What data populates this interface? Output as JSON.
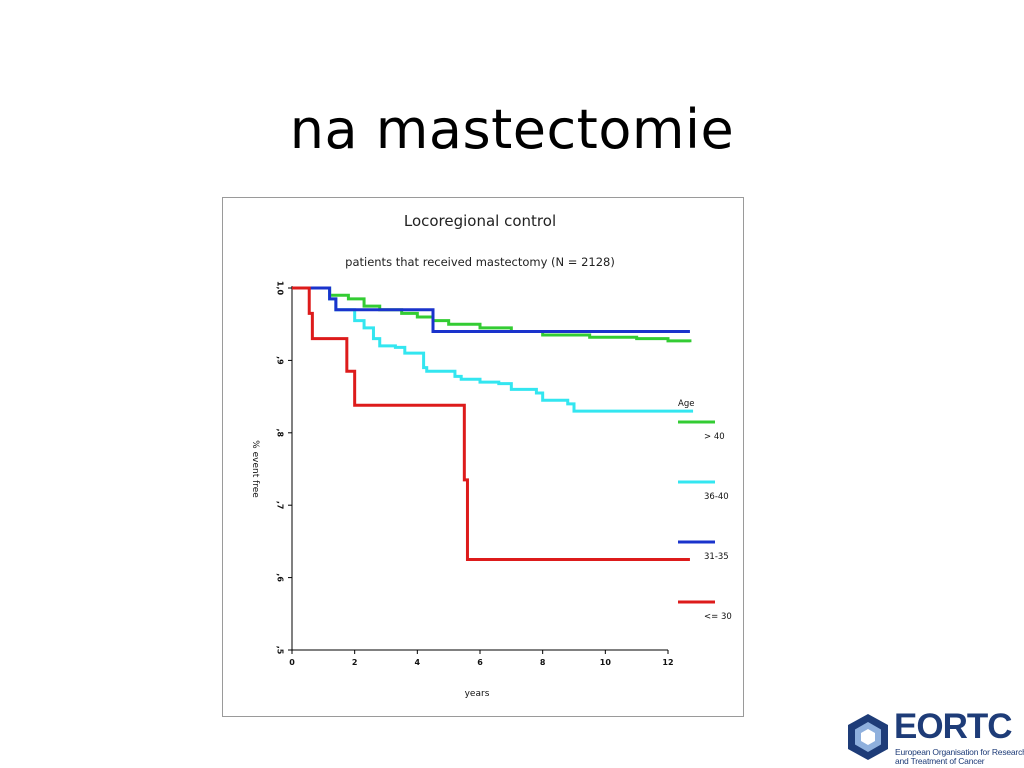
{
  "slide": {
    "title": "na mastectomie"
  },
  "logo": {
    "name": "EORTC",
    "line1": "European Organisation for Research",
    "line2": "and Treatment of Cancer",
    "color": "#1e3c78"
  },
  "chart_data": {
    "type": "line",
    "step": true,
    "title": "Locoregional control",
    "subtitle": "patients that received mastectomy (N = 2128)",
    "xlabel": "years",
    "ylabel": "% event free",
    "xlim": [
      0,
      12
    ],
    "ylim": [
      0.5,
      1.0
    ],
    "xticks": [
      0,
      2,
      4,
      6,
      8,
      10,
      12
    ],
    "yticks": [
      {
        "value": 1.0,
        "label": "1,0"
      },
      {
        "value": 0.9,
        "label": ",9"
      },
      {
        "value": 0.8,
        "label": ",8"
      },
      {
        "value": 0.7,
        "label": ",7"
      },
      {
        "value": 0.6,
        "label": ",6"
      },
      {
        "value": 0.5,
        "label": ",5"
      }
    ],
    "legend_title": "Age",
    "legend_position": "right",
    "grid": false,
    "series": [
      {
        "name": "> 40",
        "color": "#33cc33",
        "points": [
          [
            0,
            1.0
          ],
          [
            1.0,
            1.0
          ],
          [
            1.2,
            0.99
          ],
          [
            1.8,
            0.985
          ],
          [
            2.3,
            0.975
          ],
          [
            2.8,
            0.97
          ],
          [
            3.5,
            0.965
          ],
          [
            4.0,
            0.96
          ],
          [
            4.5,
            0.955
          ],
          [
            5.0,
            0.95
          ],
          [
            6.0,
            0.945
          ],
          [
            7.0,
            0.94
          ],
          [
            8.0,
            0.935
          ],
          [
            9.5,
            0.932
          ],
          [
            11.0,
            0.93
          ],
          [
            12.0,
            0.927
          ],
          [
            12.7,
            0.925
          ]
        ]
      },
      {
        "name": "36-40",
        "color": "#33e6f0",
        "points": [
          [
            0,
            1.0
          ],
          [
            1.0,
            1.0
          ],
          [
            1.2,
            0.985
          ],
          [
            1.4,
            0.97
          ],
          [
            2.0,
            0.955
          ],
          [
            2.3,
            0.945
          ],
          [
            2.6,
            0.93
          ],
          [
            2.8,
            0.92
          ],
          [
            3.3,
            0.918
          ],
          [
            3.6,
            0.91
          ],
          [
            4.2,
            0.89
          ],
          [
            4.3,
            0.885
          ],
          [
            5.2,
            0.878
          ],
          [
            5.4,
            0.874
          ],
          [
            6.0,
            0.87
          ],
          [
            6.6,
            0.868
          ],
          [
            7.0,
            0.86
          ],
          [
            7.8,
            0.855
          ],
          [
            8.0,
            0.845
          ],
          [
            8.8,
            0.84
          ],
          [
            9.0,
            0.83
          ],
          [
            12.8,
            0.83
          ]
        ]
      },
      {
        "name": "31-35",
        "color": "#1a33cc",
        "points": [
          [
            0,
            1.0
          ],
          [
            1.1,
            1.0
          ],
          [
            1.2,
            0.985
          ],
          [
            1.4,
            0.97
          ],
          [
            4.5,
            0.97
          ],
          [
            4.5,
            0.94
          ],
          [
            12.7,
            0.94
          ]
        ]
      },
      {
        "name": "<= 30",
        "color": "#dd1b1b",
        "points": [
          [
            0,
            1.0
          ],
          [
            0.5,
            1.0
          ],
          [
            0.55,
            0.965
          ],
          [
            0.65,
            0.93
          ],
          [
            1.7,
            0.93
          ],
          [
            1.75,
            0.885
          ],
          [
            2.0,
            0.885
          ],
          [
            2.0,
            0.838
          ],
          [
            5.5,
            0.838
          ],
          [
            5.5,
            0.735
          ],
          [
            5.6,
            0.735
          ],
          [
            5.6,
            0.625
          ],
          [
            12.7,
            0.625
          ]
        ]
      }
    ]
  }
}
